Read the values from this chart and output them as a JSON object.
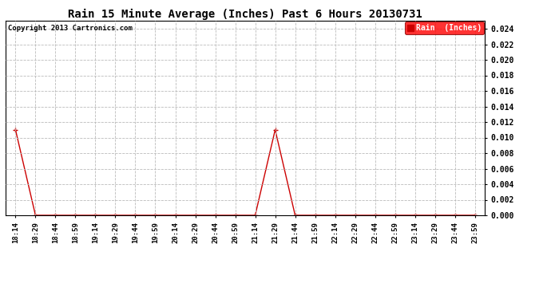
{
  "title": "Rain 15 Minute Average (Inches) Past 6 Hours 20130731",
  "copyright": "Copyright 2013 Cartronics.com",
  "legend_label": "Rain  (Inches)",
  "line_color": "#cc0000",
  "marker": "+",
  "marker_size": 4,
  "background_color": "#ffffff",
  "grid_color": "#bbbbbb",
  "ylim": [
    0,
    0.025
  ],
  "yticks": [
    0.0,
    0.002,
    0.004,
    0.006,
    0.008,
    0.01,
    0.012,
    0.014,
    0.016,
    0.018,
    0.02,
    0.022,
    0.024
  ],
  "x_labels": [
    "18:14",
    "18:29",
    "18:44",
    "18:59",
    "19:14",
    "19:29",
    "19:44",
    "19:59",
    "20:14",
    "20:29",
    "20:44",
    "20:59",
    "21:14",
    "21:29",
    "21:44",
    "21:59",
    "22:14",
    "22:29",
    "22:44",
    "22:59",
    "23:14",
    "23:29",
    "23:44",
    "23:59"
  ],
  "y_values": [
    0.011,
    0.0,
    0.0,
    0.0,
    0.0,
    0.0,
    0.0,
    0.0,
    0.0,
    0.0,
    0.0,
    0.0,
    0.0,
    0.011,
    0.0,
    0.0,
    0.0,
    0.0,
    0.0,
    0.0,
    0.0,
    0.0,
    0.0,
    0.0
  ],
  "title_fontsize": 10,
  "tick_fontsize": 6.5,
  "ytick_fontsize": 7,
  "copyright_fontsize": 6.5,
  "legend_fontsize": 7
}
